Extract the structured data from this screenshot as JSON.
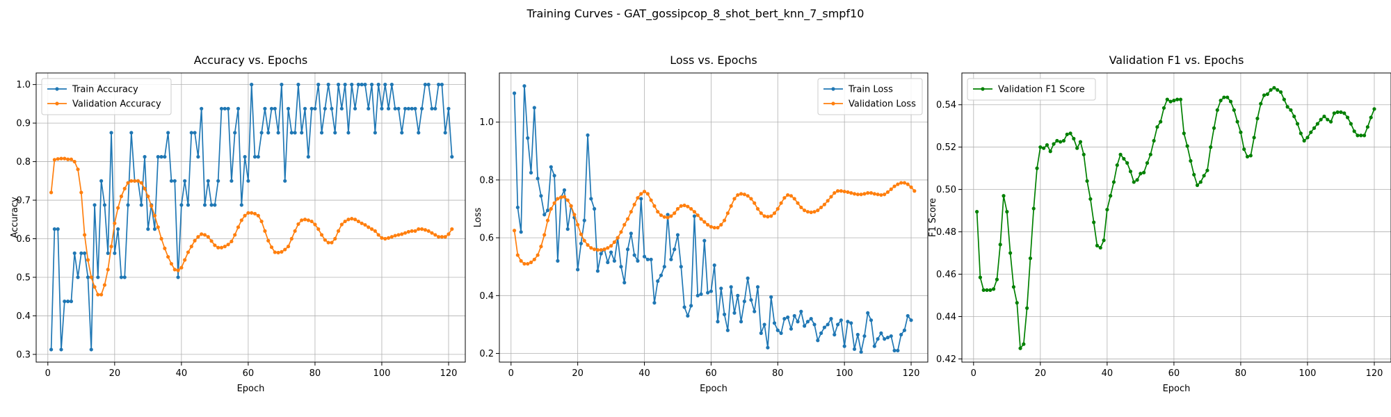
{
  "figure": {
    "suptitle": "Training Curves - GAT_gossipcop_8_shot_bert_knn_7_smpf10"
  },
  "colors": {
    "blue": "#1f77b4",
    "orange": "#ff7f0e",
    "green": "#008000",
    "grid": "#b0b0b0"
  },
  "chart_data": [
    {
      "type": "line",
      "title": "Accuracy vs. Epochs",
      "xlabel": "Epoch",
      "ylabel": "Accuracy",
      "xlim": [
        -3.5,
        125
      ],
      "ylim": [
        0.28,
        1.03
      ],
      "xticks": [
        0,
        20,
        40,
        60,
        80,
        100,
        120
      ],
      "yticks": [
        0.3,
        0.4,
        0.5,
        0.6,
        0.7,
        0.8,
        0.9,
        1.0
      ],
      "ytick_labels": [
        "0.3",
        "0.4",
        "0.5",
        "0.6",
        "0.7",
        "0.8",
        "0.9",
        "1.0"
      ],
      "grid": true,
      "legend_position": "upper-left",
      "series": [
        {
          "name": "Train Accuracy",
          "color": "#1f77b4",
          "x_start": 1,
          "values": [
            0.3125,
            0.625,
            0.625,
            0.3125,
            0.4375,
            0.4375,
            0.4375,
            0.5625,
            0.5,
            0.5625,
            0.5625,
            0.5,
            0.3125,
            0.6875,
            0.5,
            0.75,
            0.6875,
            0.5625,
            0.875,
            0.5625,
            0.625,
            0.5,
            0.5,
            0.6875,
            0.875,
            0.75,
            0.75,
            0.6875,
            0.8125,
            0.625,
            0.6875,
            0.625,
            0.8125,
            0.8125,
            0.8125,
            0.875,
            0.75,
            0.75,
            0.5,
            0.6875,
            0.75,
            0.6875,
            0.875,
            0.875,
            0.8125,
            0.9375,
            0.6875,
            0.75,
            0.6875,
            0.6875,
            0.75,
            0.9375,
            0.9375,
            0.9375,
            0.75,
            0.875,
            0.9375,
            0.6875,
            0.8125,
            0.75,
            1.0,
            0.8125,
            0.8125,
            0.875,
            0.9375,
            0.875,
            0.9375,
            0.9375,
            0.875,
            1.0,
            0.75,
            0.9375,
            0.875,
            0.875,
            1.0,
            0.875,
            0.9375,
            0.8125,
            0.9375,
            0.9375,
            1.0,
            0.875,
            0.9375,
            1.0,
            0.9375,
            0.875,
            1.0,
            0.9375,
            1.0,
            0.875,
            1.0,
            0.9375,
            1.0,
            1.0,
            1.0,
            0.9375,
            1.0,
            0.875,
            1.0,
            0.9375,
            1.0,
            0.9375,
            1.0,
            0.9375,
            0.9375,
            0.875,
            0.9375,
            0.9375,
            0.9375,
            0.9375,
            0.875,
            0.9375,
            1.0,
            1.0,
            0.9375,
            0.9375,
            1.0,
            1.0,
            0.875,
            0.9375,
            0.8125
          ]
        },
        {
          "name": "Validation Accuracy",
          "color": "#ff7f0e",
          "x_start": 1,
          "values": [
            0.72,
            0.805,
            0.807,
            0.808,
            0.808,
            0.806,
            0.806,
            0.8,
            0.78,
            0.72,
            0.61,
            0.545,
            0.5,
            0.475,
            0.455,
            0.455,
            0.48,
            0.52,
            0.58,
            0.64,
            0.68,
            0.71,
            0.73,
            0.745,
            0.75,
            0.75,
            0.75,
            0.745,
            0.73,
            0.71,
            0.685,
            0.66,
            0.63,
            0.6,
            0.575,
            0.553,
            0.535,
            0.52,
            0.518,
            0.525,
            0.545,
            0.565,
            0.58,
            0.595,
            0.605,
            0.612,
            0.61,
            0.605,
            0.594,
            0.583,
            0.577,
            0.577,
            0.58,
            0.585,
            0.593,
            0.61,
            0.63,
            0.648,
            0.66,
            0.667,
            0.667,
            0.665,
            0.66,
            0.645,
            0.62,
            0.595,
            0.578,
            0.565,
            0.564,
            0.566,
            0.572,
            0.58,
            0.6,
            0.62,
            0.638,
            0.648,
            0.65,
            0.648,
            0.645,
            0.637,
            0.625,
            0.61,
            0.597,
            0.59,
            0.59,
            0.6,
            0.62,
            0.637,
            0.645,
            0.65,
            0.652,
            0.65,
            0.645,
            0.64,
            0.636,
            0.63,
            0.625,
            0.62,
            0.61,
            0.602,
            0.6,
            0.602,
            0.605,
            0.608,
            0.61,
            0.612,
            0.615,
            0.618,
            0.62,
            0.62,
            0.625,
            0.625,
            0.623,
            0.62,
            0.615,
            0.61,
            0.605,
            0.605,
            0.605,
            0.612,
            0.625
          ]
        }
      ]
    },
    {
      "type": "line",
      "title": "Loss vs. Epochs",
      "xlabel": "Epoch",
      "ylabel": "Loss",
      "xlim": [
        -3.5,
        125
      ],
      "ylim": [
        0.17,
        1.17
      ],
      "xticks": [
        0,
        20,
        40,
        60,
        80,
        100,
        120
      ],
      "yticks": [
        0.2,
        0.4,
        0.6,
        0.8,
        1.0
      ],
      "ytick_labels": [
        "0.2",
        "0.4",
        "0.6",
        "0.8",
        "1.0"
      ],
      "grid": true,
      "legend_position": "upper-right",
      "series": [
        {
          "name": "Train Loss",
          "color": "#1f77b4",
          "x_start": 1,
          "values": [
            1.1,
            0.705,
            0.62,
            1.125,
            0.945,
            0.825,
            1.05,
            0.805,
            0.745,
            0.68,
            0.695,
            0.845,
            0.815,
            0.52,
            0.74,
            0.765,
            0.63,
            0.71,
            0.67,
            0.49,
            0.58,
            0.66,
            0.955,
            0.735,
            0.7,
            0.485,
            0.545,
            0.56,
            0.515,
            0.55,
            0.52,
            0.6,
            0.5,
            0.445,
            0.56,
            0.615,
            0.54,
            0.52,
            0.735,
            0.535,
            0.525,
            0.525,
            0.375,
            0.45,
            0.47,
            0.5,
            0.68,
            0.525,
            0.56,
            0.61,
            0.5,
            0.36,
            0.33,
            0.365,
            0.675,
            0.4,
            0.405,
            0.59,
            0.41,
            0.415,
            0.505,
            0.31,
            0.425,
            0.335,
            0.28,
            0.43,
            0.34,
            0.4,
            0.31,
            0.38,
            0.46,
            0.385,
            0.345,
            0.43,
            0.27,
            0.3,
            0.22,
            0.395,
            0.305,
            0.28,
            0.27,
            0.32,
            0.325,
            0.285,
            0.33,
            0.31,
            0.345,
            0.295,
            0.31,
            0.32,
            0.3,
            0.245,
            0.27,
            0.29,
            0.3,
            0.32,
            0.265,
            0.3,
            0.315,
            0.225,
            0.31,
            0.305,
            0.215,
            0.265,
            0.205,
            0.26,
            0.34,
            0.315,
            0.225,
            0.25,
            0.27,
            0.25,
            0.255,
            0.26,
            0.21,
            0.21,
            0.265,
            0.28,
            0.33,
            0.315
          ]
        },
        {
          "name": "Validation Loss",
          "color": "#ff7f0e",
          "x_start": 1,
          "values": [
            0.625,
            0.54,
            0.52,
            0.51,
            0.51,
            0.515,
            0.525,
            0.54,
            0.57,
            0.61,
            0.66,
            0.7,
            0.72,
            0.735,
            0.74,
            0.742,
            0.73,
            0.71,
            0.68,
            0.645,
            0.612,
            0.59,
            0.575,
            0.565,
            0.56,
            0.558,
            0.558,
            0.56,
            0.565,
            0.572,
            0.585,
            0.6,
            0.62,
            0.645,
            0.665,
            0.69,
            0.715,
            0.738,
            0.752,
            0.76,
            0.752,
            0.73,
            0.71,
            0.69,
            0.678,
            0.672,
            0.67,
            0.675,
            0.685,
            0.7,
            0.71,
            0.712,
            0.708,
            0.7,
            0.69,
            0.678,
            0.665,
            0.655,
            0.645,
            0.638,
            0.635,
            0.635,
            0.645,
            0.66,
            0.685,
            0.71,
            0.735,
            0.748,
            0.752,
            0.75,
            0.745,
            0.735,
            0.72,
            0.7,
            0.685,
            0.675,
            0.673,
            0.675,
            0.685,
            0.7,
            0.72,
            0.738,
            0.748,
            0.745,
            0.735,
            0.72,
            0.705,
            0.695,
            0.69,
            0.688,
            0.69,
            0.695,
            0.705,
            0.715,
            0.728,
            0.742,
            0.755,
            0.762,
            0.762,
            0.76,
            0.758,
            0.755,
            0.752,
            0.75,
            0.75,
            0.752,
            0.755,
            0.755,
            0.752,
            0.75,
            0.748,
            0.75,
            0.758,
            0.768,
            0.778,
            0.785,
            0.79,
            0.79,
            0.785,
            0.775,
            0.762
          ]
        }
      ]
    },
    {
      "type": "line",
      "title": "Validation F1 vs. Epochs",
      "xlabel": "Epoch",
      "ylabel": "F1 Score",
      "xlim": [
        -3.5,
        125
      ],
      "ylim": [
        0.4185,
        0.555
      ],
      "xticks": [
        0,
        20,
        40,
        60,
        80,
        100,
        120
      ],
      "yticks": [
        0.42,
        0.44,
        0.46,
        0.48,
        0.5,
        0.52,
        0.54
      ],
      "ytick_labels": [
        "0.42",
        "0.44",
        "0.46",
        "0.48",
        "0.50",
        "0.52",
        "0.54"
      ],
      "grid": true,
      "legend_position": "upper-left",
      "series": [
        {
          "name": "Validation F1 Score",
          "color": "#008000",
          "x_start": 1,
          "values": [
            0.4895,
            0.4585,
            0.4525,
            0.4525,
            0.4525,
            0.453,
            0.4575,
            0.474,
            0.497,
            0.4895,
            0.47,
            0.454,
            0.4465,
            0.425,
            0.427,
            0.444,
            0.4675,
            0.491,
            0.51,
            0.52,
            0.5195,
            0.521,
            0.518,
            0.5215,
            0.523,
            0.5225,
            0.523,
            0.526,
            0.5265,
            0.524,
            0.5195,
            0.5225,
            0.5165,
            0.504,
            0.4955,
            0.4845,
            0.4735,
            0.4725,
            0.476,
            0.4905,
            0.497,
            0.5035,
            0.5115,
            0.5165,
            0.5145,
            0.5125,
            0.5085,
            0.5035,
            0.5045,
            0.5075,
            0.508,
            0.5125,
            0.5165,
            0.523,
            0.5295,
            0.532,
            0.5385,
            0.5425,
            0.5415,
            0.542,
            0.5425,
            0.5425,
            0.5265,
            0.5205,
            0.5135,
            0.507,
            0.502,
            0.5035,
            0.5065,
            0.509,
            0.52,
            0.529,
            0.5375,
            0.542,
            0.5435,
            0.5435,
            0.5415,
            0.5375,
            0.532,
            0.527,
            0.519,
            0.5155,
            0.516,
            0.5245,
            0.5335,
            0.5405,
            0.5445,
            0.545,
            0.547,
            0.548,
            0.547,
            0.546,
            0.5425,
            0.539,
            0.5375,
            0.5345,
            0.531,
            0.5265,
            0.523,
            0.5245,
            0.527,
            0.529,
            0.531,
            0.533,
            0.5345,
            0.533,
            0.532,
            0.536,
            0.5365,
            0.5365,
            0.536,
            0.534,
            0.531,
            0.5275,
            0.5255,
            0.5255,
            0.5255,
            0.5295,
            0.534,
            0.538
          ]
        }
      ]
    }
  ]
}
